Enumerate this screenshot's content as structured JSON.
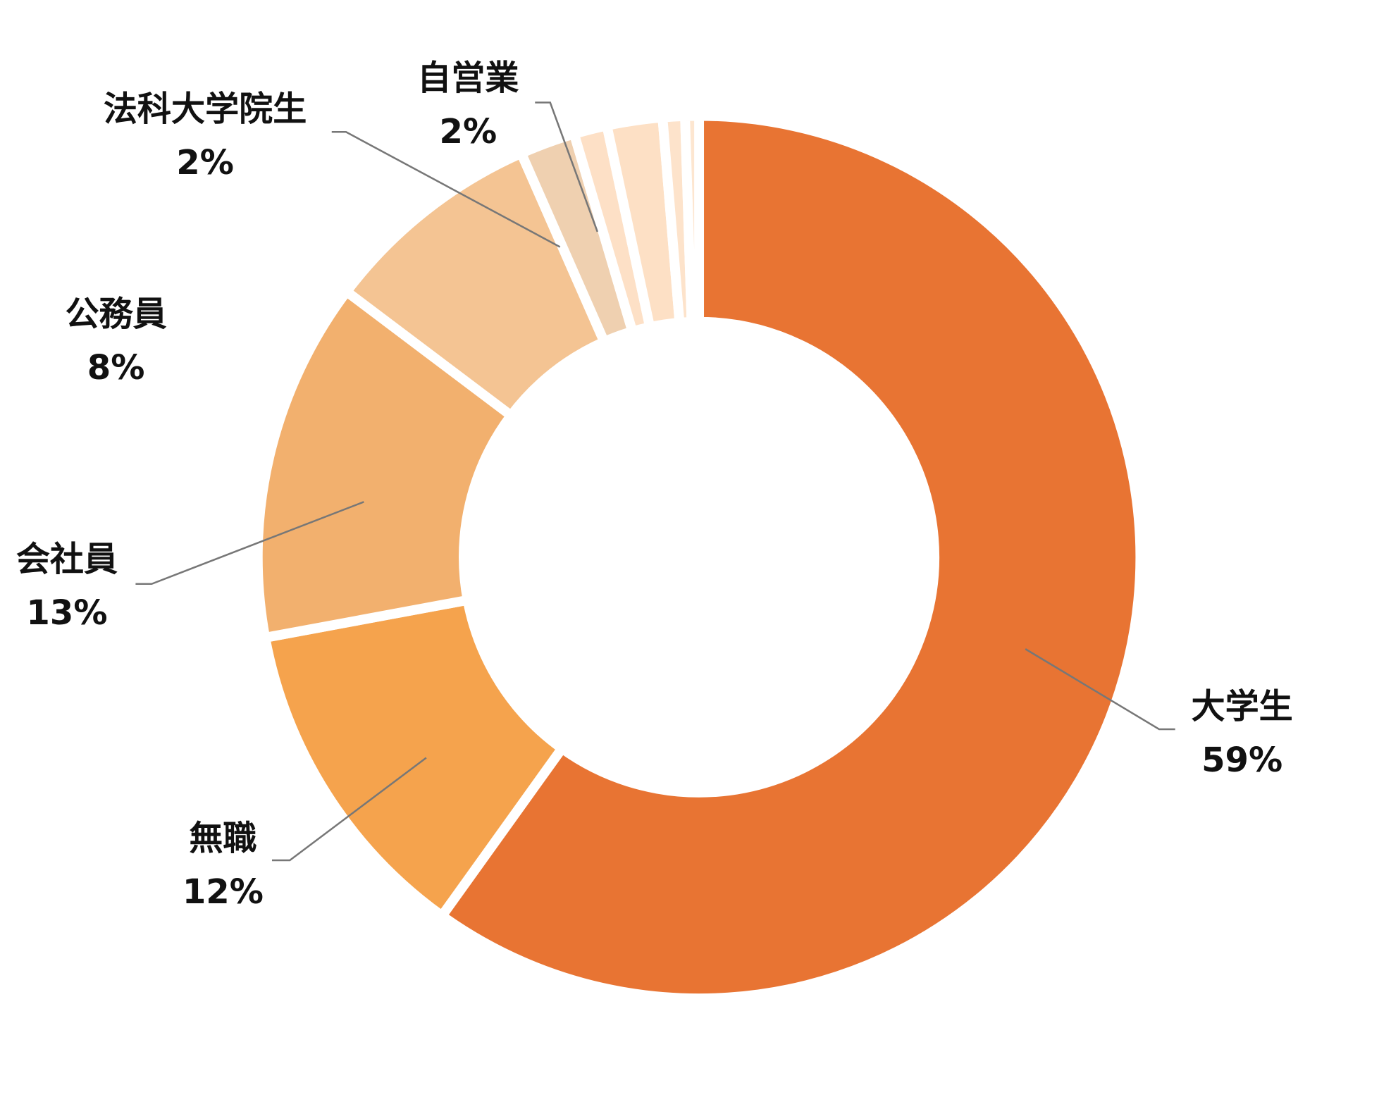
{
  "chart_data": {
    "type": "donut",
    "categories": [
      "大学生",
      "無職",
      "会社員",
      "公務員",
      "法科大学院生",
      null,
      "自営業",
      null,
      null
    ],
    "values": [
      59,
      12,
      13,
      8,
      2,
      1.2,
      2,
      0.8,
      0.5
    ],
    "value_labels": [
      "59%",
      "12%",
      "13%",
      "8%",
      "2%",
      null,
      "2%",
      null,
      null
    ],
    "colors": [
      "#e87433",
      "#f5a34d",
      "#f2b06e",
      "#f4c493",
      "#efd0b0",
      "#fde0c6",
      "#fde0c5",
      "#fde3cb",
      "#fde6d0"
    ]
  }
}
